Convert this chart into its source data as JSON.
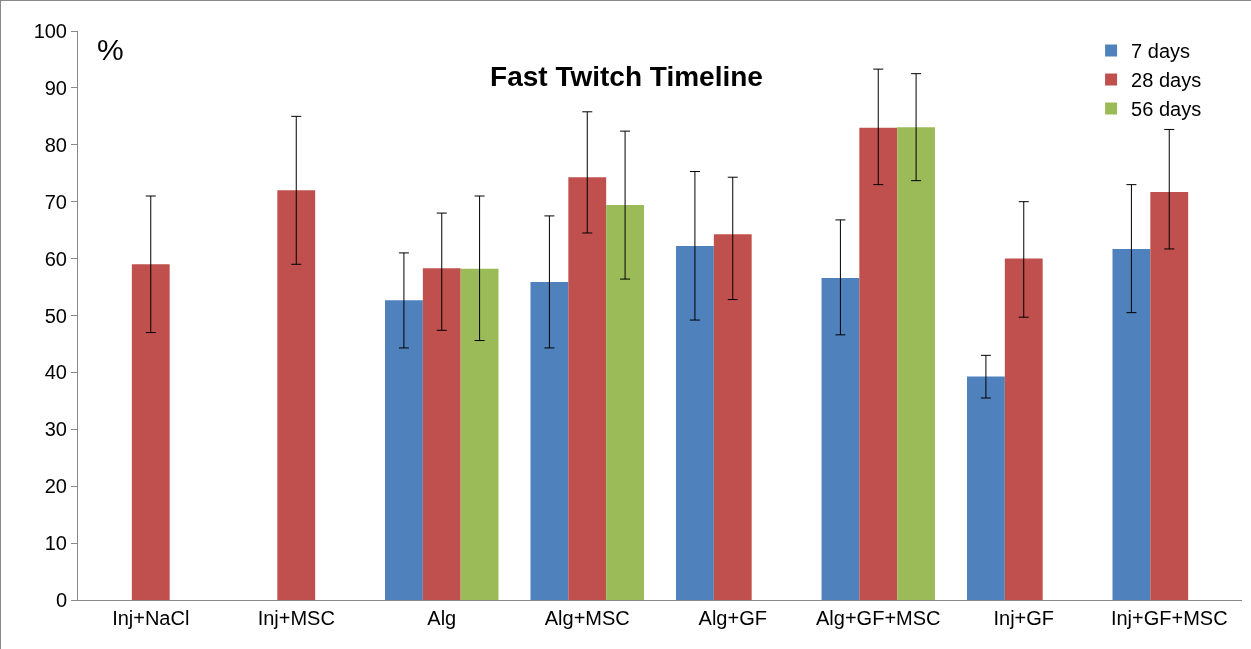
{
  "chart_data": {
    "type": "bar",
    "title": "Fast Twitch Timeline",
    "ylabel": "%",
    "categories": [
      "Inj+NaCl",
      "Inj+MSC",
      "Alg",
      "Alg+MSC",
      "Alg+GF",
      "Alg+GF+MSC",
      "Inj+GF",
      "Inj+GF+MSC"
    ],
    "series": [
      {
        "name": "7 days",
        "color": "#4f81bd",
        "values": [
          null,
          null,
          52.7,
          55.9,
          62.2,
          56.6,
          39.3,
          61.7
        ],
        "errors": [
          null,
          null,
          [
            44.3,
            61
          ],
          [
            44.3,
            67.5
          ],
          [
            49.2,
            75.3
          ],
          [
            46.6,
            66.8
          ],
          [
            35.5,
            43
          ],
          [
            50.5,
            73
          ]
        ]
      },
      {
        "name": "28 days",
        "color": "#c0504d",
        "values": [
          59,
          72,
          58.3,
          74.3,
          64.3,
          83,
          60,
          71.7
        ],
        "errors": [
          [
            47,
            71
          ],
          [
            59,
            85
          ],
          [
            47.4,
            68
          ],
          [
            64.5,
            85.8
          ],
          [
            52.8,
            74.3
          ],
          [
            73,
            93.3
          ],
          [
            49.7,
            70
          ],
          [
            61.7,
            82.7
          ]
        ]
      },
      {
        "name": "56 days",
        "color": "#9bbb59",
        "values": [
          null,
          null,
          58.2,
          69.4,
          null,
          83.1,
          null,
          null
        ],
        "errors": [
          null,
          null,
          [
            45.6,
            71
          ],
          [
            56.4,
            82.4
          ],
          null,
          [
            73.7,
            92.5
          ],
          null,
          null
        ]
      }
    ],
    "ylim": [
      0,
      100
    ],
    "yticks": [
      0,
      10,
      20,
      30,
      40,
      50,
      60,
      70,
      80,
      90,
      100
    ],
    "grid": false,
    "legend": "top right"
  }
}
